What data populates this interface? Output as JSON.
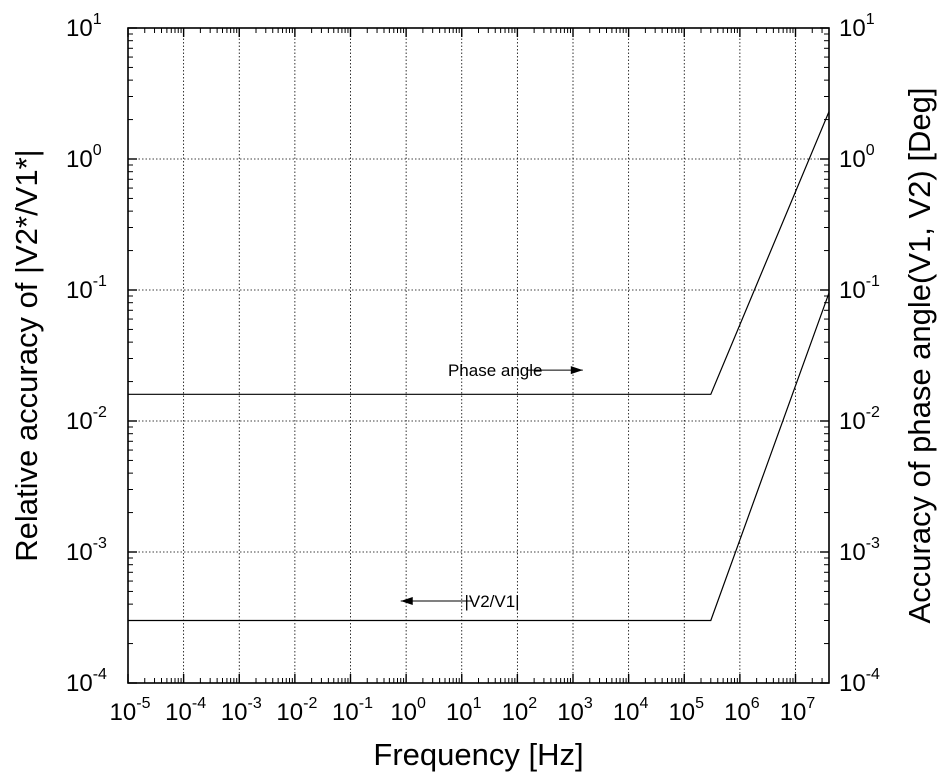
{
  "chart_data": {
    "type": "line",
    "xlabel": "Frequency [Hz]",
    "ylabel_left": "Relative accuracy of |V2*/V1*|",
    "ylabel_right": "Accuracy of phase angle(V1, V2) [Deg]",
    "x_scale": "log",
    "y_scale": "log",
    "xlim": [
      1e-05,
      40000000
    ],
    "ylim": [
      0.0001,
      10
    ],
    "grid": true,
    "x_ticks": [
      {
        "base": "10",
        "exp": "-5",
        "value": 1e-05
      },
      {
        "base": "10",
        "exp": "-4",
        "value": 0.0001
      },
      {
        "base": "10",
        "exp": "-3",
        "value": 0.001
      },
      {
        "base": "10",
        "exp": "-2",
        "value": 0.01
      },
      {
        "base": "10",
        "exp": "-1",
        "value": 0.1
      },
      {
        "base": "10",
        "exp": "0",
        "value": 1
      },
      {
        "base": "10",
        "exp": "1",
        "value": 10
      },
      {
        "base": "10",
        "exp": "2",
        "value": 100
      },
      {
        "base": "10",
        "exp": "3",
        "value": 1000
      },
      {
        "base": "10",
        "exp": "4",
        "value": 10000
      },
      {
        "base": "10",
        "exp": "5",
        "value": 100000
      },
      {
        "base": "10",
        "exp": "6",
        "value": 1000000
      },
      {
        "base": "10",
        "exp": "7",
        "value": 10000000
      }
    ],
    "y_ticks": [
      {
        "base": "10",
        "exp": "1",
        "value": 10
      },
      {
        "base": "10",
        "exp": "0",
        "value": 1
      },
      {
        "base": "10",
        "exp": "-1",
        "value": 0.1
      },
      {
        "base": "10",
        "exp": "-2",
        "value": 0.01
      },
      {
        "base": "10",
        "exp": "-3",
        "value": 0.001
      },
      {
        "base": "10",
        "exp": "-4",
        "value": 0.0001
      }
    ],
    "series": [
      {
        "name": "Phase angle",
        "axis": "right",
        "points": [
          [
            1e-05,
            0.016
          ],
          [
            300000,
            0.016
          ],
          [
            40000000,
            2.3
          ]
        ]
      },
      {
        "name": "|V2/V1|",
        "axis": "left",
        "points": [
          [
            1e-05,
            0.0003
          ],
          [
            300000,
            0.0003
          ],
          [
            40000000,
            0.095
          ]
        ]
      }
    ],
    "annotations": [
      {
        "text": "Phase angle",
        "x": 40,
        "y": 0.022,
        "arrow": "right",
        "arrow_from": 150,
        "arrow_to": 1500
      },
      {
        "text": "|V2/V1|",
        "x": 35,
        "y": 0.00038,
        "arrow": "left",
        "arrow_from": 15,
        "arrow_to": 0.8
      }
    ]
  }
}
